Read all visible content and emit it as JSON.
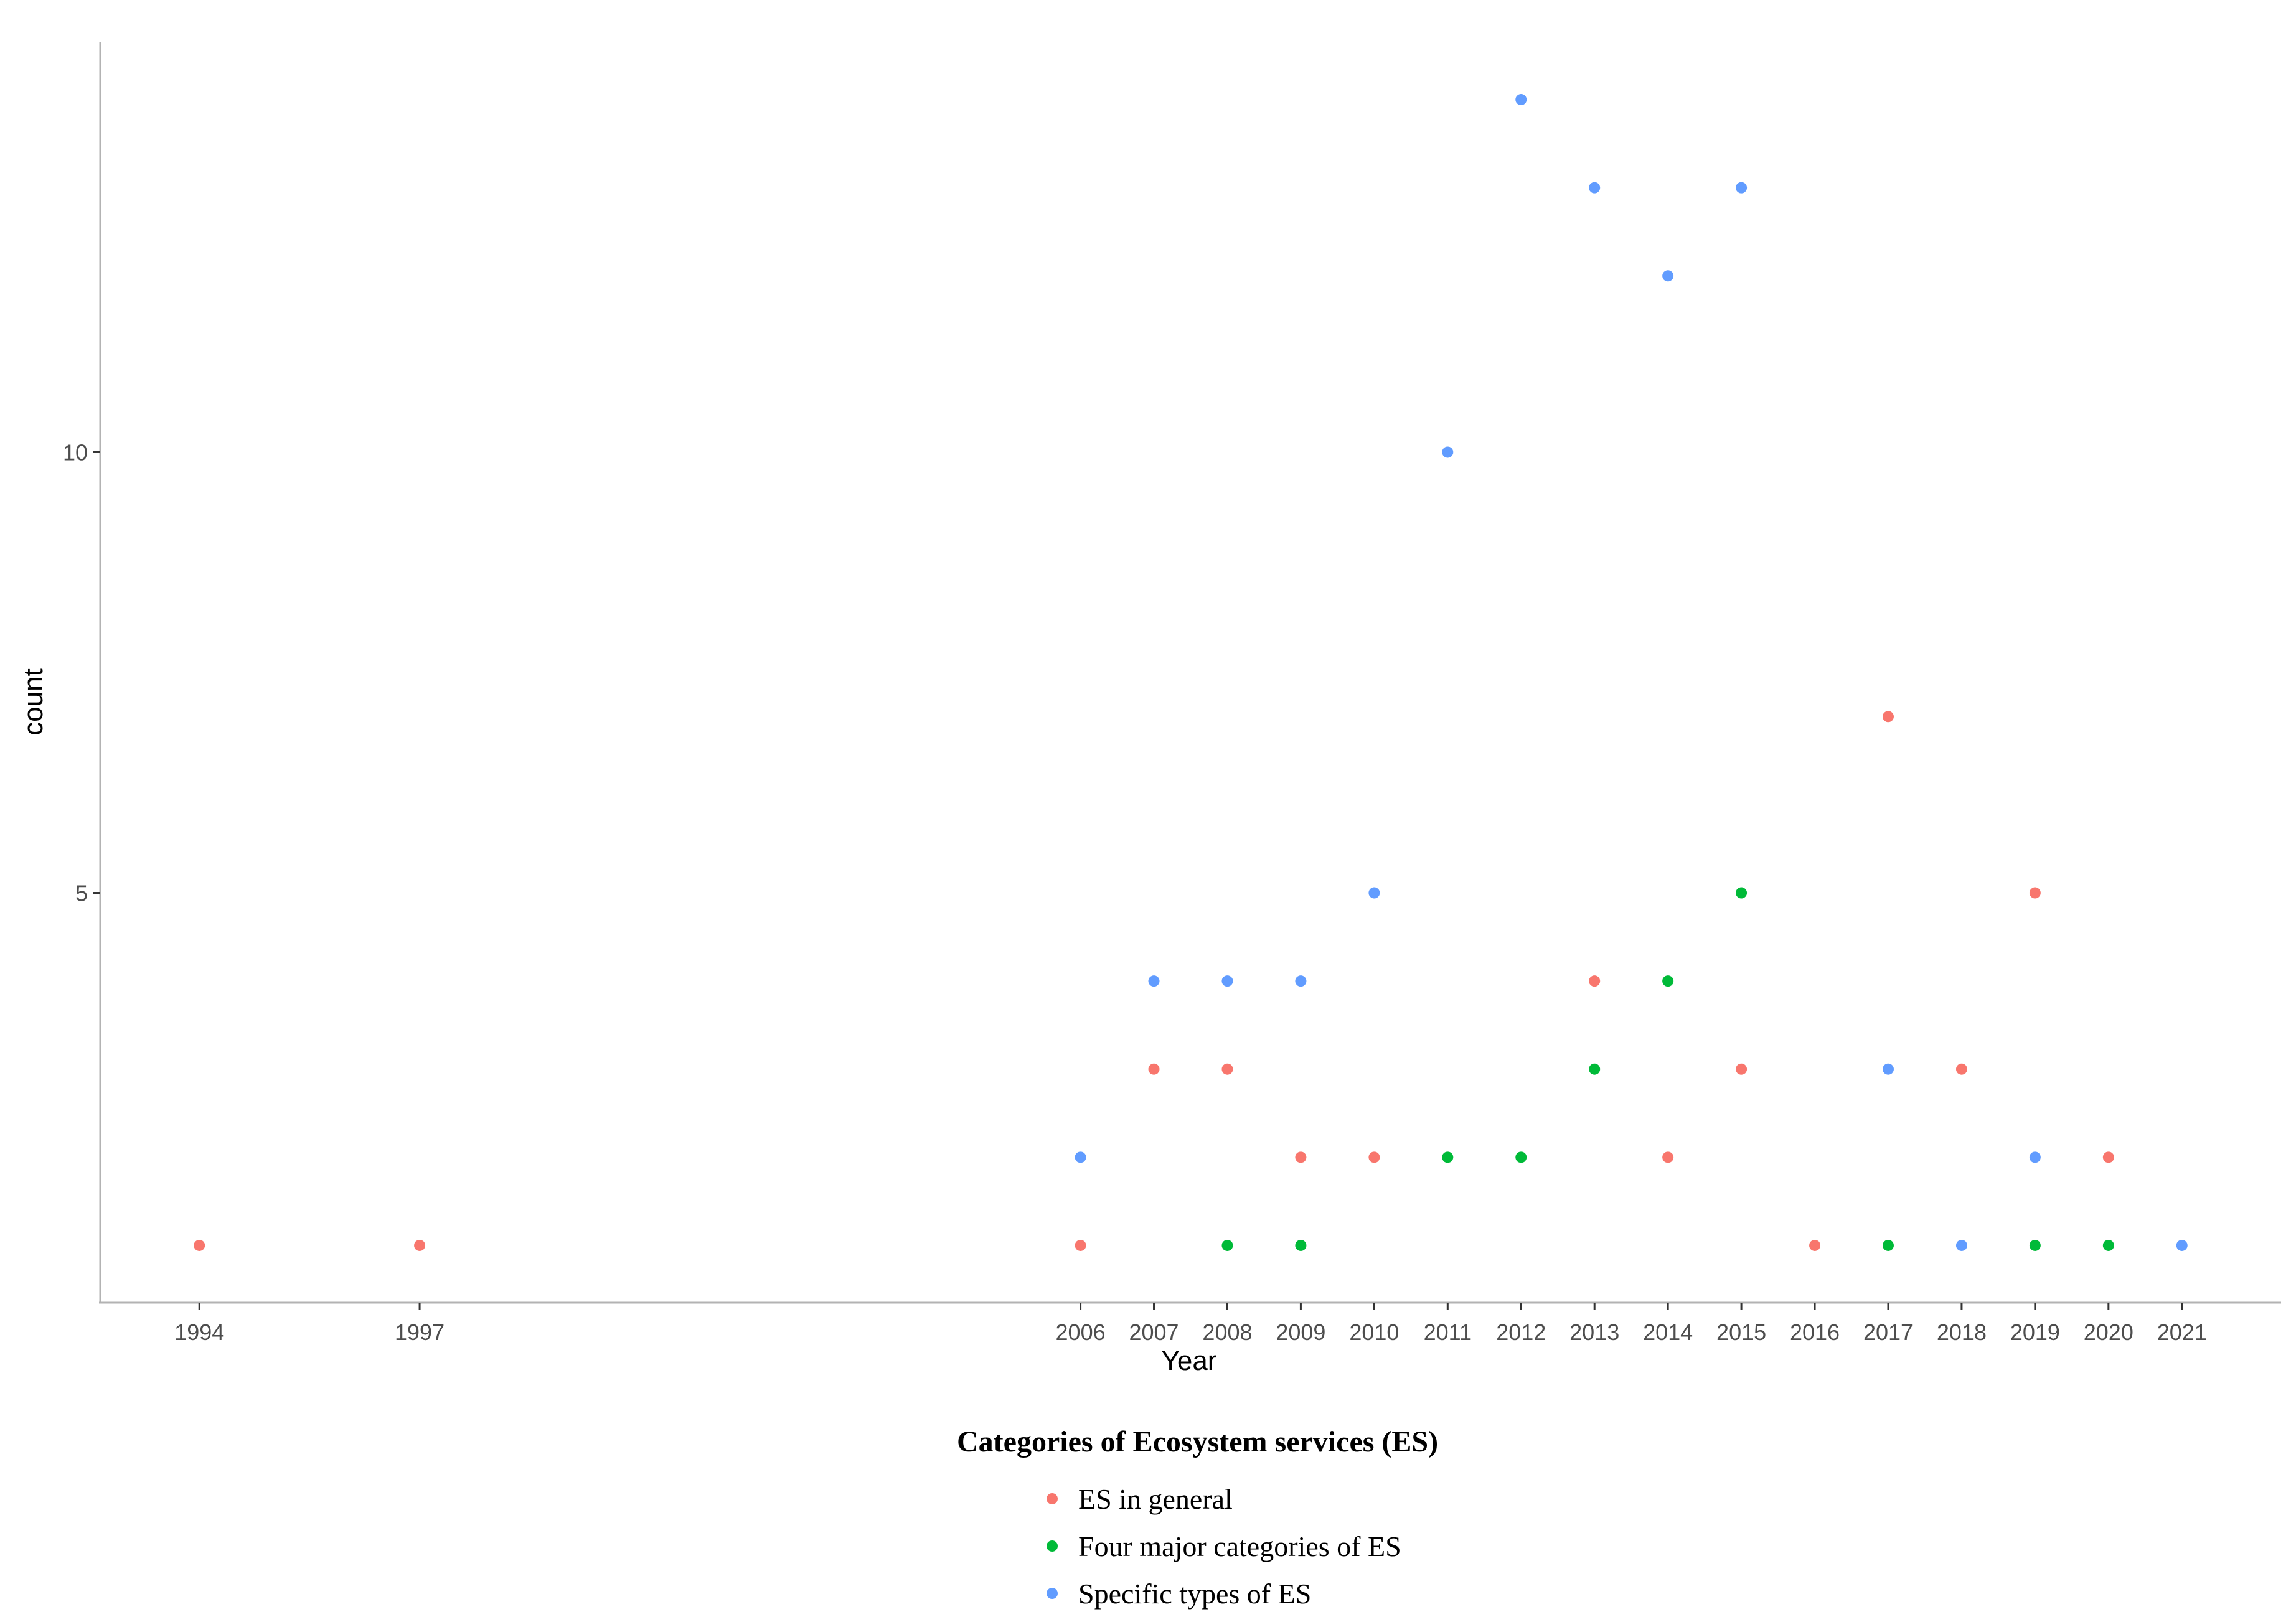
{
  "chart_data": {
    "type": "scatter",
    "xlabel": "Year",
    "ylabel": "count",
    "x_ticks": [
      "1994",
      "1997",
      "2006",
      "2007",
      "2008",
      "2009",
      "2010",
      "2011",
      "2012",
      "2013",
      "2014",
      "2015",
      "2016",
      "2017",
      "2018",
      "2019",
      "2020",
      "2021"
    ],
    "y_ticks": [
      5,
      10
    ],
    "xlim": [
      1992.65,
      2022.35
    ],
    "ylim": [
      0.35,
      14.65
    ],
    "grid": false,
    "legend_title": "Categories of Ecosystem services (ES)",
    "legend_position": "bottom",
    "series": [
      {
        "name": "ES in general",
        "color": "#F8766D",
        "points": [
          {
            "x": 1994,
            "y": 1
          },
          {
            "x": 1997,
            "y": 1
          },
          {
            "x": 2006,
            "y": 1
          },
          {
            "x": 2007,
            "y": 3
          },
          {
            "x": 2008,
            "y": 3
          },
          {
            "x": 2009,
            "y": 2
          },
          {
            "x": 2010,
            "y": 2
          },
          {
            "x": 2013,
            "y": 4
          },
          {
            "x": 2014,
            "y": 2
          },
          {
            "x": 2015,
            "y": 3
          },
          {
            "x": 2016,
            "y": 1
          },
          {
            "x": 2017,
            "y": 7
          },
          {
            "x": 2018,
            "y": 3
          },
          {
            "x": 2019,
            "y": 5
          },
          {
            "x": 2020,
            "y": 2
          }
        ]
      },
      {
        "name": "Four major categories of ES",
        "color": "#00BA38",
        "points": [
          {
            "x": 2008,
            "y": 1
          },
          {
            "x": 2009,
            "y": 1
          },
          {
            "x": 2011,
            "y": 2
          },
          {
            "x": 2012,
            "y": 2
          },
          {
            "x": 2013,
            "y": 3
          },
          {
            "x": 2014,
            "y": 4
          },
          {
            "x": 2015,
            "y": 5
          },
          {
            "x": 2017,
            "y": 1
          },
          {
            "x": 2019,
            "y": 1
          },
          {
            "x": 2020,
            "y": 1
          }
        ]
      },
      {
        "name": "Specific types of ES",
        "color": "#619CFF",
        "points": [
          {
            "x": 2006,
            "y": 2
          },
          {
            "x": 2007,
            "y": 4
          },
          {
            "x": 2008,
            "y": 4
          },
          {
            "x": 2009,
            "y": 4
          },
          {
            "x": 2010,
            "y": 5
          },
          {
            "x": 2011,
            "y": 10
          },
          {
            "x": 2012,
            "y": 14
          },
          {
            "x": 2013,
            "y": 13
          },
          {
            "x": 2014,
            "y": 12
          },
          {
            "x": 2015,
            "y": 13
          },
          {
            "x": 2017,
            "y": 3
          },
          {
            "x": 2018,
            "y": 1
          },
          {
            "x": 2019,
            "y": 2
          },
          {
            "x": 2021,
            "y": 1
          }
        ]
      }
    ]
  }
}
